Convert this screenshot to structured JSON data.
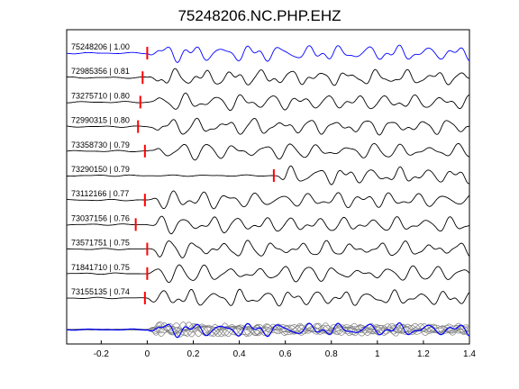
{
  "chart_data": {
    "type": "line",
    "title": "75248206.NC.PHP.EHZ",
    "xlim": [
      -0.35,
      1.4
    ],
    "xticks": [
      -0.2,
      0,
      0.2,
      0.4,
      0.6,
      0.8,
      1,
      1.2,
      1.4
    ],
    "xtick_labels": [
      "-0.2",
      "0",
      "0.2",
      "0.4",
      "0.6",
      "0.8",
      "1",
      "1.2",
      "1.4"
    ],
    "grid": false,
    "series": [
      {
        "name": "75248206 | 1.00",
        "pick_time": 0.0,
        "color": "#0000ff"
      },
      {
        "name": "72985356 | 0.81",
        "pick_time": -0.02,
        "color": "#000000"
      },
      {
        "name": "73275710 | 0.80",
        "pick_time": -0.03,
        "color": "#000000"
      },
      {
        "name": "72990315 | 0.80",
        "pick_time": -0.04,
        "color": "#000000"
      },
      {
        "name": "73358730 | 0.79",
        "pick_time": -0.01,
        "color": "#000000"
      },
      {
        "name": "73290150 | 0.79",
        "pick_time": 0.55,
        "color": "#000000"
      },
      {
        "name": "73112166 | 0.77",
        "pick_time": -0.01,
        "color": "#000000"
      },
      {
        "name": "73037156 | 0.76",
        "pick_time": -0.05,
        "color": "#000000"
      },
      {
        "name": "73571751 | 0.75",
        "pick_time": 0.0,
        "color": "#000000"
      },
      {
        "name": "71841710 | 0.75",
        "pick_time": 0.0,
        "color": "#000000"
      },
      {
        "name": "73155135 | 0.74",
        "pick_time": -0.01,
        "color": "#000000"
      }
    ],
    "pick_marker_color": "#ff0000",
    "stack_panel_color": "#0000ff",
    "overlay_color": "#808080"
  }
}
